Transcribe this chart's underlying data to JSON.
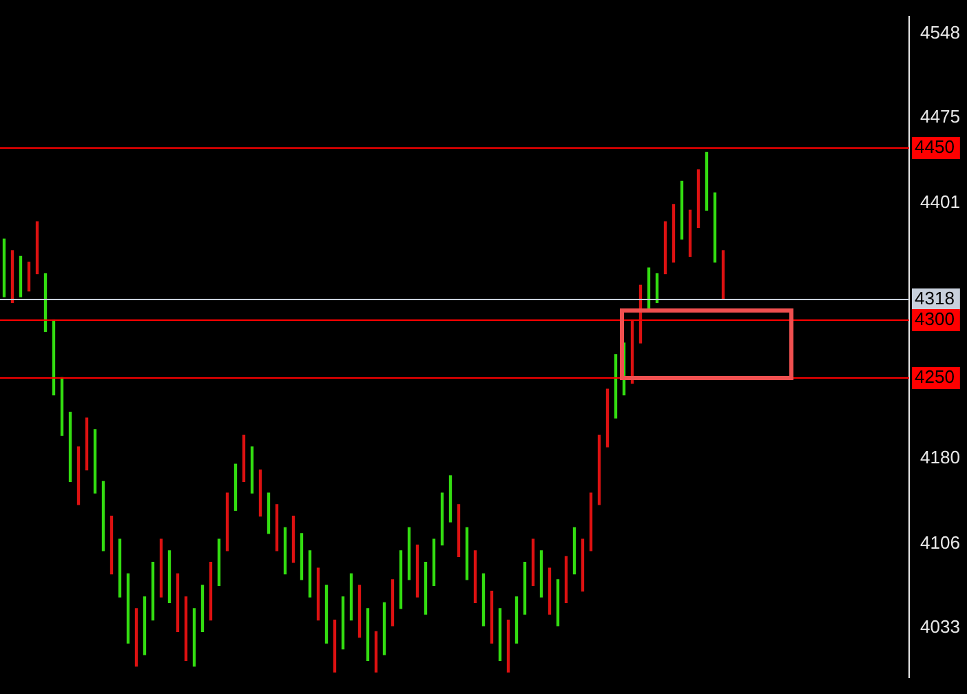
{
  "chart_data": {
    "type": "bar",
    "categories": [
      null,
      null,
      null,
      null,
      null,
      null,
      null,
      null,
      null,
      null,
      null,
      null,
      null,
      null,
      null,
      null,
      null,
      null,
      null,
      null,
      null,
      null,
      null,
      null,
      null,
      null,
      null,
      null,
      null,
      null,
      null,
      null,
      null,
      null,
      null,
      null,
      null,
      null,
      null,
      null,
      null,
      null,
      null,
      null,
      null,
      null,
      null,
      null,
      null,
      null,
      null,
      null,
      null,
      null,
      null,
      null,
      null,
      null,
      null,
      null,
      null,
      null,
      null,
      null,
      null,
      null,
      null,
      null,
      null,
      null,
      null,
      null,
      null,
      null,
      null,
      null,
      null,
      null,
      null,
      null,
      null,
      null,
      null,
      null,
      null,
      null,
      null,
      null,
      null,
      null,
      null,
      null,
      null,
      null,
      null,
      null,
      null,
      null,
      null,
      null,
      null,
      null,
      null,
      null,
      null,
      null,
      null,
      null,
      null,
      null
    ],
    "base": [
      4320,
      4315,
      4320,
      4325,
      4340,
      4290,
      4235,
      4200,
      4160,
      4140,
      4170,
      4150,
      4100,
      4080,
      4060,
      4020,
      4000,
      4010,
      4040,
      4060,
      4055,
      4030,
      4005,
      4000,
      4030,
      4040,
      4070,
      4100,
      4135,
      4160,
      4150,
      4130,
      4115,
      4100,
      4080,
      4090,
      4075,
      4060,
      4040,
      4020,
      3995,
      4015,
      4040,
      4025,
      4005,
      3995,
      4010,
      4035,
      4050,
      4075,
      4060,
      4045,
      4070,
      4105,
      4125,
      4095,
      4075,
      4055,
      4035,
      4020,
      4005,
      3995,
      4020,
      4045,
      4070,
      4060,
      4045,
      4035,
      4055,
      4080,
      4065,
      4100,
      4140,
      4190,
      4215,
      4235,
      4245,
      4280,
      4310,
      4315,
      4340,
      4350,
      4370,
      4355,
      4380,
      4395,
      4350,
      4318,
      null,
      null,
      null,
      null,
      null,
      null,
      null,
      null,
      null,
      null,
      null,
      null,
      null,
      null,
      null,
      null,
      null,
      null,
      null,
      null,
      null,
      null
    ],
    "values": [
      50,
      45,
      35,
      25,
      45,
      50,
      65,
      50,
      60,
      50,
      45,
      55,
      60,
      50,
      50,
      60,
      50,
      50,
      50,
      50,
      45,
      50,
      55,
      50,
      40,
      50,
      40,
      50,
      40,
      40,
      40,
      40,
      35,
      40,
      40,
      40,
      40,
      40,
      45,
      50,
      45,
      45,
      40,
      45,
      45,
      35,
      45,
      40,
      50,
      45,
      45,
      45,
      40,
      45,
      40,
      45,
      45,
      45,
      45,
      45,
      45,
      45,
      40,
      45,
      40,
      40,
      40,
      40,
      40,
      40,
      45,
      50,
      60,
      50,
      55,
      45,
      55,
      50,
      35,
      25,
      45,
      50,
      50,
      40,
      50,
      50,
      60,
      42,
      null,
      null,
      null,
      null,
      null,
      null,
      null,
      null,
      null,
      null,
      null,
      null,
      null,
      null,
      null,
      null,
      null,
      null,
      null,
      null,
      null,
      null
    ],
    "colors": [
      "#33dd11",
      "#dd1111",
      "#33dd11",
      "#dd1111",
      "#dd1111",
      "#33dd11",
      "#33dd11",
      "#33dd11",
      "#33dd11",
      "#dd1111",
      "#dd1111",
      "#33dd11",
      "#33dd11",
      "#dd1111",
      "#33dd11",
      "#33dd11",
      "#dd1111",
      "#33dd11",
      "#33dd11",
      "#dd1111",
      "#33dd11",
      "#dd1111",
      "#dd1111",
      "#33dd11",
      "#33dd11",
      "#dd1111",
      "#33dd11",
      "#dd1111",
      "#33dd11",
      "#dd1111",
      "#33dd11",
      "#dd1111",
      "#33dd11",
      "#dd1111",
      "#33dd11",
      "#dd1111",
      "#33dd11",
      "#33dd11",
      "#dd1111",
      "#33dd11",
      "#dd1111",
      "#33dd11",
      "#33dd11",
      "#dd1111",
      "#33dd11",
      "#dd1111",
      "#33dd11",
      "#dd1111",
      "#33dd11",
      "#33dd11",
      "#dd1111",
      "#33dd11",
      "#33dd11",
      "#33dd11",
      "#33dd11",
      "#dd1111",
      "#33dd11",
      "#dd1111",
      "#33dd11",
      "#dd1111",
      "#33dd11",
      "#dd1111",
      "#33dd11",
      "#33dd11",
      "#dd1111",
      "#33dd11",
      "#dd1111",
      "#33dd11",
      "#dd1111",
      "#33dd11",
      "#dd1111",
      "#dd1111",
      "#dd1111",
      "#dd1111",
      "#33dd11",
      "#33dd11",
      "#dd1111",
      "#dd1111",
      "#33dd11",
      "#33dd11",
      "#dd1111",
      "#dd1111",
      "#33dd11",
      "#dd1111",
      "#dd1111",
      "#33dd11",
      "#33dd11",
      "#dd1111",
      "#33dd11",
      "#33dd11",
      "#33dd11",
      "#33dd11",
      "#33dd11",
      "#33dd11",
      "#33dd11",
      "#33dd11",
      "#33dd11",
      "#33dd11",
      "#33dd11",
      "#33dd11",
      "#33dd11",
      "#33dd11",
      "#33dd11",
      "#33dd11",
      "#33dd11",
      "#33dd11",
      "#33dd11",
      "#33dd11",
      "#33dd11",
      "#33dd11"
    ],
    "ylim": [
      3990,
      4563
    ],
    "yticks": [
      4548,
      4475,
      4401,
      4180,
      4106,
      4033
    ],
    "tick_labels": "y",
    "grid": false,
    "legend": false,
    "ref_lines": [
      {
        "axis": "y",
        "value": 4450,
        "label": "4450",
        "color": "#ff0000"
      },
      {
        "axis": "y",
        "value": 4318,
        "label": "4318",
        "color": "#c8d0dc"
      },
      {
        "axis": "y",
        "value": 4300,
        "label": "4300",
        "color": "#ff0000"
      },
      {
        "axis": "y",
        "value": 4250,
        "label": "4250",
        "color": "#ff0000"
      }
    ]
  }
}
